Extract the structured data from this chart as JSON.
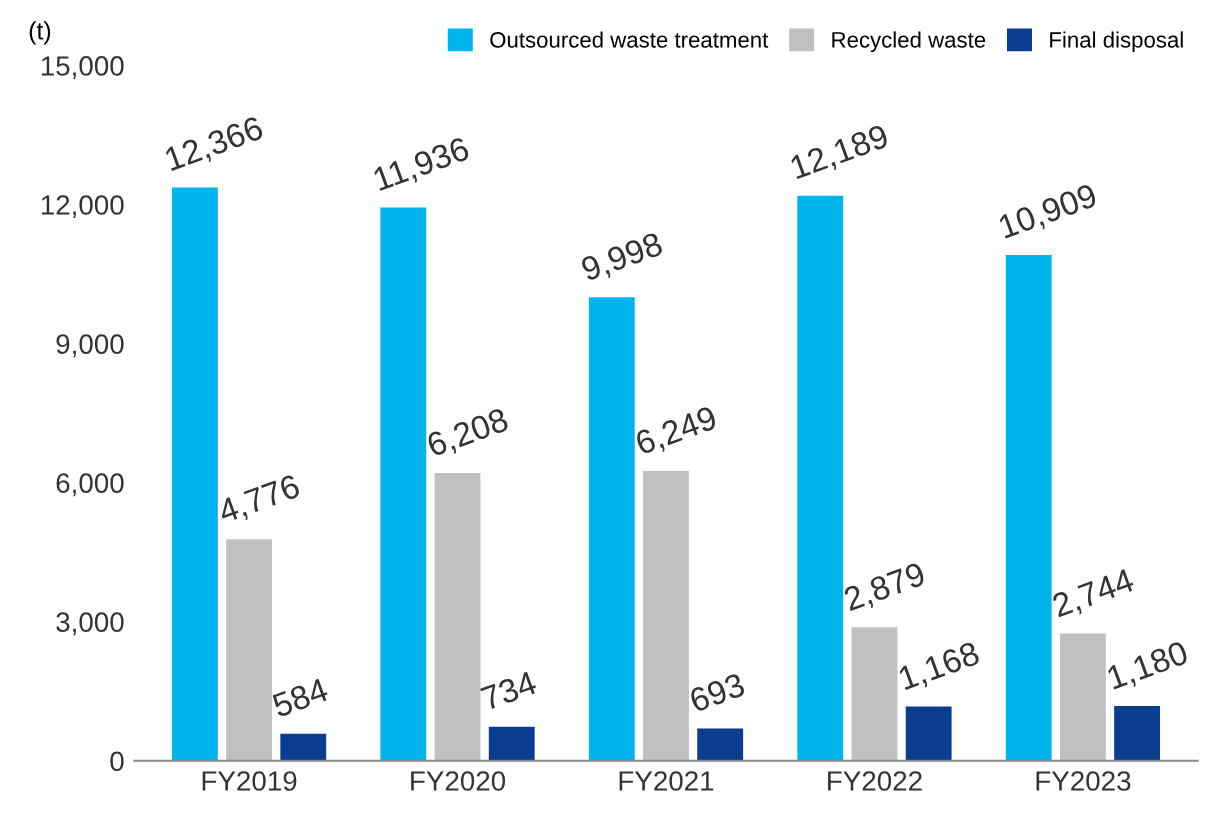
{
  "chart_data": {
    "type": "bar",
    "ylabel": "(t)",
    "categories": [
      "FY2019",
      "FY2020",
      "FY2021",
      "FY2022",
      "FY2023"
    ],
    "series": [
      {
        "name": "Outsourced waste treatment",
        "color": "#00b4ee",
        "values": [
          12366,
          11936,
          9998,
          12189,
          10909
        ],
        "value_labels": [
          "12,366",
          "11,936",
          "9,998",
          "12,189",
          "10,909"
        ]
      },
      {
        "name": "Recycled waste",
        "color": "#bfc0c2",
        "values": [
          4776,
          6208,
          6249,
          2879,
          2744
        ],
        "value_labels": [
          "4,776",
          "6,208",
          "6,249",
          "2,879",
          "2,744"
        ]
      },
      {
        "name": "Final disposal",
        "color": "#0a3d8f",
        "values": [
          584,
          734,
          693,
          1168,
          1180
        ],
        "value_labels": [
          "584",
          "734",
          "693",
          "1,168",
          "1,180"
        ]
      }
    ],
    "ylim": [
      0,
      15000
    ],
    "yticks": [
      {
        "value": 0,
        "label": "0"
      },
      {
        "value": 3000,
        "label": "3,000"
      },
      {
        "value": 6000,
        "label": "6,000"
      },
      {
        "value": 9000,
        "label": "9,000"
      },
      {
        "value": 12000,
        "label": "12,000"
      },
      {
        "value": 15000,
        "label": "15,000"
      }
    ],
    "legend": "top right",
    "grid": false
  }
}
